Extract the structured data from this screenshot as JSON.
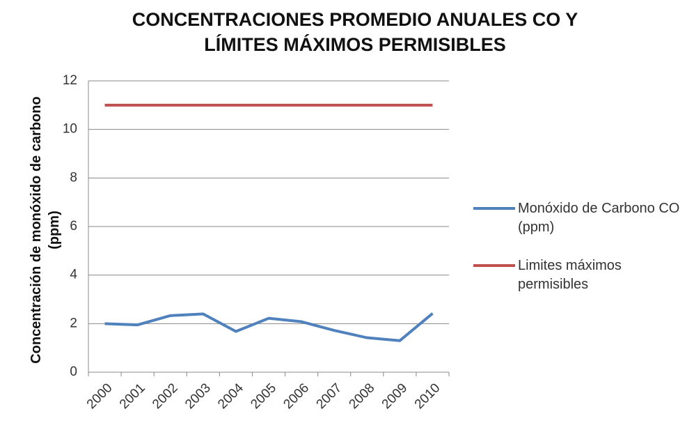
{
  "chart_data": {
    "type": "line",
    "title": "CONCENTRACIONES PROMEDIO ANUALES CO Y LÍMITES MÁXIMOS PERMISIBLES",
    "y_label": "Concentración de monóxido de carbono (ppm)",
    "categories": [
      "2000",
      "2001",
      "2002",
      "2003",
      "2004",
      "2005",
      "2006",
      "2007",
      "2008",
      "2009",
      "2010"
    ],
    "series": [
      {
        "name": "Monóxido de Carbono CO (ppm)",
        "color": "#4f81bd",
        "values": [
          2.0,
          1.95,
          2.33,
          2.4,
          1.68,
          2.22,
          2.08,
          1.72,
          1.42,
          1.3,
          2.42
        ]
      },
      {
        "name": "Limites máximos permisibles",
        "color": "#c0504d",
        "values": [
          11,
          11,
          11,
          11,
          11,
          11,
          11,
          11,
          11,
          11,
          11
        ]
      }
    ],
    "ylim": [
      0,
      12
    ],
    "yticks": [
      0,
      2,
      4,
      6,
      8,
      10,
      12
    ],
    "grid": true,
    "legend": "right"
  }
}
